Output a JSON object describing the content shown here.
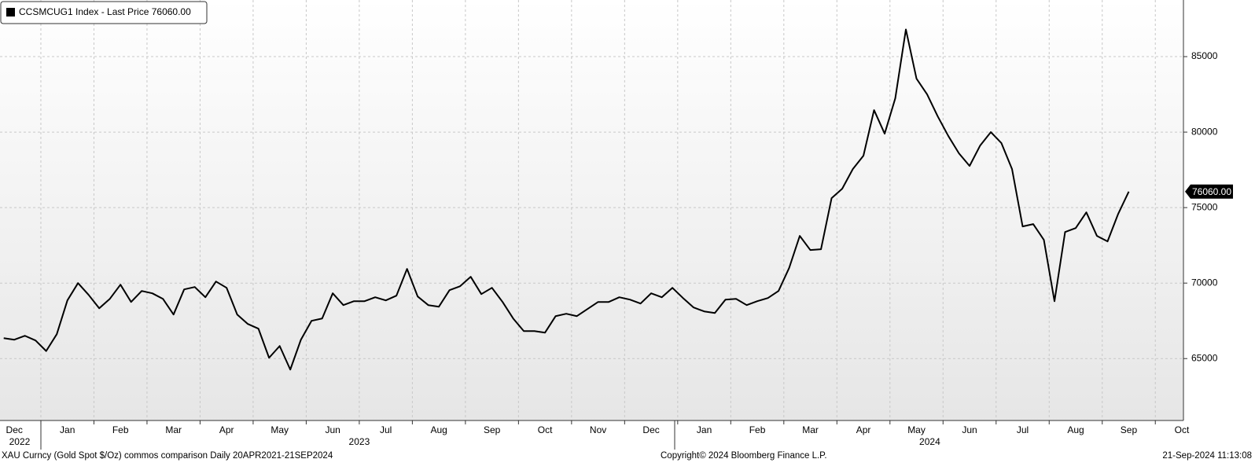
{
  "chart_data": {
    "type": "line",
    "series": [
      {
        "name": "CCSMCUG1 Index - Last Price 76060.00",
        "color": "#000000",
        "values": [
          66354,
          66250,
          66510,
          66200,
          65500,
          66615,
          68854,
          70000,
          69219,
          68333,
          68958,
          69896,
          68750,
          69479,
          69323,
          68958,
          67917,
          69583,
          69740,
          69062,
          70104,
          69687,
          67917,
          67292,
          66979,
          65052,
          65833,
          64271,
          66250,
          67500,
          67656,
          69323,
          68542,
          68802,
          68802,
          69062,
          68854,
          69167,
          70938,
          69115,
          68542,
          68437,
          69531,
          69792,
          70417,
          69271,
          69687,
          68750,
          67656,
          66823,
          66823,
          66719,
          67812,
          67969,
          67812,
          68281,
          68750,
          68750,
          69062,
          68906,
          68646,
          69323,
          69062,
          69687,
          69010,
          68385,
          68125,
          68021,
          68906,
          68958,
          68542,
          68802,
          69010,
          69479,
          71000,
          73125,
          72187,
          72240,
          75625,
          76250,
          77552,
          78437,
          81458,
          79896,
          82240,
          86800,
          83541,
          82500,
          81042,
          79740,
          78594,
          77760,
          79115,
          80000,
          79271,
          77552,
          73750,
          73906,
          72864,
          68800,
          73385,
          73646,
          74687,
          73125,
          72760,
          74583,
          76060
        ]
      }
    ],
    "x": [
      -0.7,
      -0.5,
      -0.3,
      -0.1,
      0.1,
      0.3,
      0.5,
      0.7,
      0.9,
      1.1,
      1.3,
      1.5,
      1.7,
      1.9,
      2.1,
      2.3,
      2.5,
      2.7,
      2.9,
      3.1,
      3.3,
      3.5,
      3.7,
      3.9,
      4.1,
      4.3,
      4.5,
      4.7,
      4.9,
      5.1,
      5.3,
      5.5,
      5.7,
      5.9,
      6.1,
      6.3,
      6.5,
      6.7,
      6.9,
      7.1,
      7.3,
      7.5,
      7.7,
      7.9,
      8.1,
      8.3,
      8.5,
      8.7,
      8.9,
      9.1,
      9.3,
      9.5,
      9.7,
      9.9,
      10.1,
      10.3,
      10.5,
      10.7,
      10.9,
      11.1,
      11.3,
      11.5,
      11.7,
      11.9,
      12.1,
      12.3,
      12.5,
      12.7,
      12.9,
      13.1,
      13.3,
      13.5,
      13.7,
      13.9,
      14.1,
      14.3,
      14.5,
      14.7,
      14.9,
      15.1,
      15.3,
      15.5,
      15.7,
      15.9,
      16.1,
      16.3,
      16.5,
      16.7,
      16.9,
      17.1,
      17.3,
      17.5,
      17.7,
      17.9,
      18.1,
      18.3,
      18.5,
      18.7,
      18.9,
      19.1,
      19.3,
      19.5,
      19.7,
      19.9,
      20.1,
      20.3,
      20.5
    ],
    "xlim": [
      -0.77,
      21.53
    ],
    "xticks": [
      {
        "value": -1,
        "label": "Dec"
      },
      {
        "value": 0,
        "label": "Jan"
      },
      {
        "value": 1,
        "label": "Feb"
      },
      {
        "value": 2,
        "label": "Mar"
      },
      {
        "value": 3,
        "label": "Apr"
      },
      {
        "value": 4,
        "label": "May"
      },
      {
        "value": 5,
        "label": "Jun"
      },
      {
        "value": 6,
        "label": "Jul"
      },
      {
        "value": 7,
        "label": "Aug"
      },
      {
        "value": 8,
        "label": "Sep"
      },
      {
        "value": 9,
        "label": "Oct"
      },
      {
        "value": 10,
        "label": "Nov"
      },
      {
        "value": 11,
        "label": "Dec"
      },
      {
        "value": 12,
        "label": "Jan"
      },
      {
        "value": 13,
        "label": "Feb"
      },
      {
        "value": 14,
        "label": "Mar"
      },
      {
        "value": 15,
        "label": "Apr"
      },
      {
        "value": 16,
        "label": "May"
      },
      {
        "value": 17,
        "label": "Jun"
      },
      {
        "value": 18,
        "label": "Jul"
      },
      {
        "value": 19,
        "label": "Aug"
      },
      {
        "value": 20,
        "label": "Sep"
      },
      {
        "value": 21,
        "label": "Oct"
      }
    ],
    "year_labels": [
      {
        "value": -0.4,
        "label": "2022"
      },
      {
        "value": 6,
        "label": "2023"
      },
      {
        "value": 16.75,
        "label": "2024"
      }
    ],
    "ylim": [
      60900,
      88750
    ],
    "yticks": [
      65000,
      70000,
      75000,
      80000,
      85000
    ],
    "last_price_label": {
      "value": 76060,
      "label": "76060.00"
    },
    "grid": true
  },
  "footer": {
    "source": "XAU Curncy (Gold Spot  $/Oz) commos comparison  Daily 20APR2021-21SEP2024",
    "copyright": "Copyright© 2024 Bloomberg Finance L.P.",
    "timestamp": "21-Sep-2024 11:13:08"
  }
}
